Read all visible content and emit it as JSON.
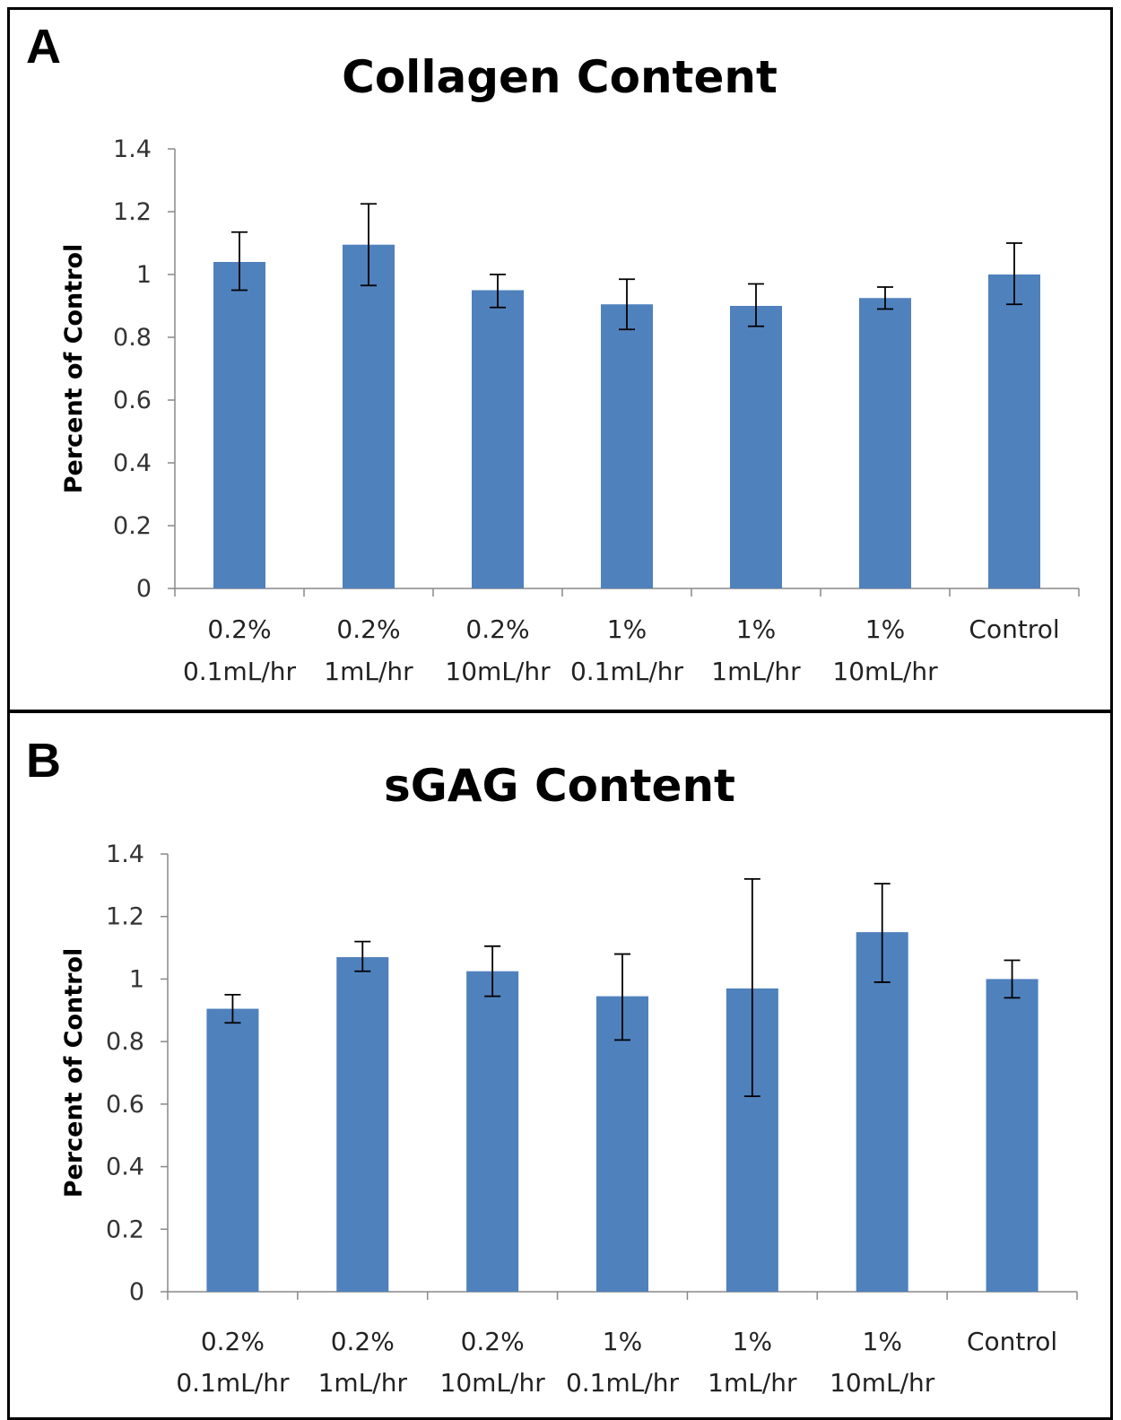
{
  "panels": [
    {
      "label": "A",
      "chart_data": {
        "type": "bar",
        "title": "Collagen Content",
        "ylabel": "Percent of Control",
        "xlabel": "",
        "ylim": [
          0,
          1.4
        ],
        "yticks": [
          "0",
          "0.2",
          "0.4",
          "0.6",
          "0.8",
          "1",
          "1.2",
          "1.4"
        ],
        "categories": [
          [
            "0.2%",
            "0.1mL/hr"
          ],
          [
            "0.2%",
            "1mL/hr"
          ],
          [
            "0.2%",
            "10mL/hr"
          ],
          [
            "1%",
            "0.1mL/hr"
          ],
          [
            "1%",
            "1mL/hr"
          ],
          [
            "1%",
            "10mL/hr"
          ],
          [
            "Control",
            ""
          ]
        ],
        "values": [
          1.04,
          1.095,
          0.95,
          0.905,
          0.9,
          0.925,
          1.0
        ],
        "error_low": [
          0.95,
          0.965,
          0.895,
          0.825,
          0.835,
          0.89,
          0.905
        ],
        "error_high": [
          1.135,
          1.225,
          1.0,
          0.985,
          0.97,
          0.96,
          1.1
        ],
        "bar_color": "#4f81bd",
        "grid": false,
        "legend": "none"
      }
    },
    {
      "label": "B",
      "chart_data": {
        "type": "bar",
        "title": "sGAG Content",
        "ylabel": "Percent of Control",
        "xlabel": "",
        "ylim": [
          0,
          1.4
        ],
        "yticks": [
          "0",
          "0.2",
          "0.4",
          "0.6",
          "0.8",
          "1",
          "1.2",
          "1.4"
        ],
        "categories": [
          [
            "0.2%",
            "0.1mL/hr"
          ],
          [
            "0.2%",
            "1mL/hr"
          ],
          [
            "0.2%",
            "10mL/hr"
          ],
          [
            "1%",
            "0.1mL/hr"
          ],
          [
            "1%",
            "1mL/hr"
          ],
          [
            "1%",
            "10mL/hr"
          ],
          [
            "Control",
            ""
          ]
        ],
        "values": [
          0.905,
          1.07,
          1.025,
          0.945,
          0.97,
          1.15,
          1.0
        ],
        "error_low": [
          0.86,
          1.025,
          0.945,
          0.805,
          0.625,
          0.99,
          0.94
        ],
        "error_high": [
          0.95,
          1.12,
          1.105,
          1.08,
          1.32,
          1.305,
          1.06
        ],
        "bar_color": "#4f81bd",
        "grid": false,
        "legend": "none"
      }
    }
  ]
}
